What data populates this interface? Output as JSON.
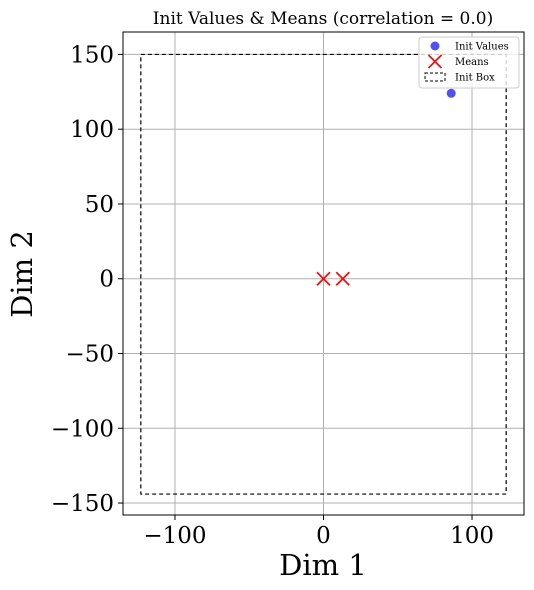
{
  "chart_data": {
    "type": "scatter",
    "title": "Init Values & Means (correlation = 0.0)",
    "xlabel": "Dim 1",
    "ylabel": "Dim 2",
    "xlim": [
      -135,
      135
    ],
    "ylim": [
      -158,
      165
    ],
    "x_ticks": [
      -100,
      0,
      100
    ],
    "y_ticks": [
      -150,
      -100,
      -50,
      0,
      50,
      100,
      150
    ],
    "x_tick_labels": [
      "−100",
      "0",
      "100"
    ],
    "y_tick_labels": [
      "−150",
      "−100",
      "−50",
      "0",
      "50",
      "100",
      "150"
    ],
    "grid": true,
    "legend_position": "top-right",
    "series": [
      {
        "name": "Init Values",
        "marker": "circle",
        "color": "#3333ee",
        "points": [
          {
            "x": 86,
            "y": 124
          }
        ]
      },
      {
        "name": "Means",
        "marker": "x",
        "color": "#ee1111",
        "points": [
          {
            "x": 0,
            "y": 0
          },
          {
            "x": 13,
            "y": 0
          }
        ]
      }
    ],
    "init_box": {
      "name": "Init Box",
      "x_range": [
        -123,
        123
      ],
      "y_range": [
        -144,
        150
      ],
      "line_style": "dashed",
      "color": "#000000"
    }
  }
}
